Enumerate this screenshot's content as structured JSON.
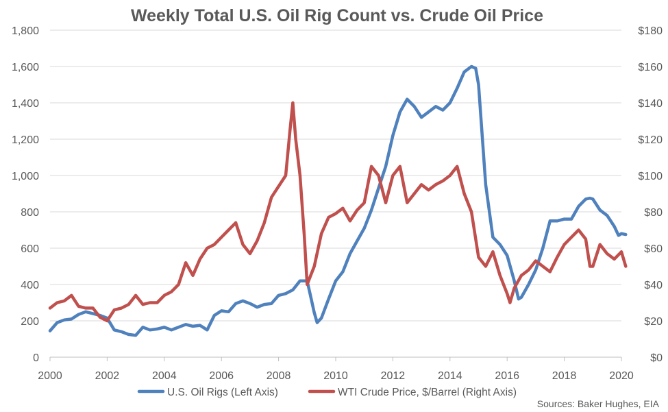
{
  "chart_data": {
    "type": "line",
    "title": "Weekly Total U.S. Oil Rig Count vs. Crude Oil Price",
    "source": "Sources: Baker Hughes, EIA",
    "x_axis": {
      "range": [
        2000,
        2020
      ],
      "ticks": [
        "2000",
        "2002",
        "2004",
        "2006",
        "2008",
        "2010",
        "2012",
        "2014",
        "2016",
        "2018",
        "2020"
      ]
    },
    "y_left": {
      "range": [
        0,
        1800
      ],
      "ticks": [
        "0",
        "200",
        "400",
        "600",
        "800",
        "1,000",
        "1,200",
        "1,400",
        "1,600",
        "1,800"
      ]
    },
    "y_right": {
      "range": [
        0,
        180
      ],
      "ticks": [
        "$0",
        "$20",
        "$40",
        "$60",
        "$80",
        "$100",
        "$120",
        "$140",
        "$160",
        "$180"
      ]
    },
    "grid": "horizontal",
    "legend_position": "bottom",
    "series": [
      {
        "name": "U.S. Oil Rigs (Left Axis)",
        "axis": "left",
        "color": "#4F81BD",
        "x": [
          2000.0,
          2000.25,
          2000.5,
          2000.75,
          2001.0,
          2001.25,
          2001.5,
          2001.75,
          2002.0,
          2002.25,
          2002.5,
          2002.75,
          2003.0,
          2003.25,
          2003.5,
          2003.75,
          2004.0,
          2004.25,
          2004.5,
          2004.75,
          2005.0,
          2005.25,
          2005.5,
          2005.75,
          2006.0,
          2006.25,
          2006.5,
          2006.75,
          2007.0,
          2007.25,
          2007.5,
          2007.75,
          2008.0,
          2008.25,
          2008.5,
          2008.75,
          2009.0,
          2009.1,
          2009.25,
          2009.35,
          2009.5,
          2009.75,
          2010.0,
          2010.25,
          2010.5,
          2010.75,
          2011.0,
          2011.25,
          2011.5,
          2011.75,
          2012.0,
          2012.25,
          2012.5,
          2012.75,
          2013.0,
          2013.25,
          2013.5,
          2013.75,
          2014.0,
          2014.25,
          2014.5,
          2014.75,
          2014.9,
          2015.0,
          2015.25,
          2015.5,
          2015.75,
          2016.0,
          2016.25,
          2016.4,
          2016.5,
          2016.75,
          2017.0,
          2017.25,
          2017.5,
          2017.75,
          2018.0,
          2018.25,
          2018.5,
          2018.75,
          2018.9,
          2019.0,
          2019.25,
          2019.5,
          2019.75,
          2019.9,
          2020.0,
          2020.15
        ],
        "values": [
          145,
          190,
          205,
          210,
          235,
          250,
          240,
          230,
          215,
          150,
          140,
          125,
          120,
          165,
          150,
          155,
          165,
          150,
          165,
          180,
          170,
          175,
          150,
          230,
          255,
          250,
          295,
          310,
          295,
          275,
          290,
          295,
          340,
          350,
          370,
          420,
          420,
          350,
          245,
          190,
          215,
          320,
          420,
          470,
          570,
          640,
          710,
          810,
          930,
          1050,
          1220,
          1350,
          1420,
          1380,
          1320,
          1350,
          1380,
          1360,
          1400,
          1480,
          1570,
          1600,
          1590,
          1500,
          950,
          660,
          620,
          560,
          420,
          320,
          330,
          400,
          480,
          600,
          750,
          750,
          760,
          760,
          830,
          870,
          875,
          870,
          810,
          780,
          720,
          670,
          680,
          675
        ]
      },
      {
        "name": "WTI Crude Price, $/Barrel (Right Axis)",
        "axis": "right",
        "color": "#C0504D",
        "x": [
          2000.0,
          2000.25,
          2000.5,
          2000.75,
          2001.0,
          2001.25,
          2001.5,
          2001.75,
          2002.0,
          2002.25,
          2002.5,
          2002.75,
          2003.0,
          2003.25,
          2003.5,
          2003.75,
          2004.0,
          2004.25,
          2004.5,
          2004.75,
          2005.0,
          2005.25,
          2005.5,
          2005.75,
          2006.0,
          2006.25,
          2006.5,
          2006.75,
          2007.0,
          2007.25,
          2007.5,
          2007.75,
          2008.0,
          2008.25,
          2008.4,
          2008.5,
          2008.6,
          2008.75,
          2008.9,
          2009.0,
          2009.25,
          2009.5,
          2009.75,
          2010.0,
          2010.25,
          2010.5,
          2010.75,
          2011.0,
          2011.25,
          2011.5,
          2011.75,
          2012.0,
          2012.25,
          2012.5,
          2012.75,
          2013.0,
          2013.25,
          2013.5,
          2013.75,
          2014.0,
          2014.25,
          2014.5,
          2014.75,
          2015.0,
          2015.25,
          2015.5,
          2015.75,
          2016.0,
          2016.1,
          2016.25,
          2016.5,
          2016.75,
          2017.0,
          2017.25,
          2017.5,
          2017.75,
          2018.0,
          2018.25,
          2018.5,
          2018.75,
          2018.9,
          2019.0,
          2019.25,
          2019.5,
          2019.75,
          2020.0,
          2020.15
        ],
        "values": [
          27,
          30,
          31,
          34,
          28,
          27,
          27,
          22,
          20,
          26,
          27,
          29,
          34,
          29,
          30,
          30,
          34,
          36,
          40,
          52,
          45,
          54,
          60,
          62,
          66,
          70,
          74,
          62,
          57,
          64,
          74,
          88,
          94,
          100,
          125,
          140,
          120,
          100,
          67,
          40,
          50,
          68,
          77,
          79,
          82,
          75,
          81,
          85,
          105,
          100,
          85,
          100,
          105,
          85,
          90,
          95,
          92,
          95,
          97,
          100,
          105,
          90,
          80,
          55,
          50,
          58,
          45,
          35,
          30,
          38,
          45,
          48,
          53,
          50,
          47,
          55,
          62,
          66,
          70,
          65,
          50,
          50,
          62,
          57,
          54,
          58,
          50
        ]
      }
    ]
  }
}
